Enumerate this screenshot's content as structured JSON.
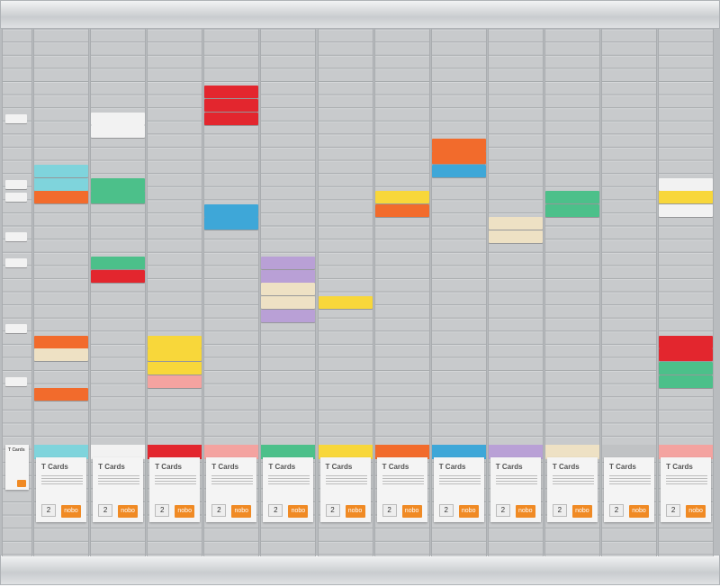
{
  "board": {
    "pack_title": "T Cards",
    "pack_number": "2",
    "brand": "nobo",
    "first_column_markers": [
      6,
      11,
      12,
      15,
      17,
      22,
      26
    ],
    "columns": [
      {
        "pack_color": "#7fd4dc",
        "cards": [
          [
            10,
            "#7fd4dc"
          ],
          [
            11,
            "#7fd4dc"
          ],
          [
            12,
            "#f26b2c"
          ],
          [
            23,
            "#f26b2c"
          ],
          [
            24,
            "#eee1c4"
          ],
          [
            27,
            "#f26b2c"
          ]
        ]
      },
      {
        "pack_color": "#f2f2f2",
        "cards": [
          [
            6,
            "#f2f2f2"
          ],
          [
            7,
            "#f2f2f2"
          ],
          [
            11,
            "#4cc08a"
          ],
          [
            12,
            "#4cc08a"
          ],
          [
            17,
            "#4cc08a"
          ],
          [
            18,
            "#e3262e"
          ]
        ]
      },
      {
        "pack_color": "#e3262e",
        "cards": [
          [
            23,
            "#f8d73a"
          ],
          [
            24,
            "#f8d73a"
          ],
          [
            25,
            "#f8d73a"
          ],
          [
            26,
            "#f4a3a0"
          ]
        ]
      },
      {
        "pack_color": "#f4a3a0",
        "cards": [
          [
            4,
            "#e3262e"
          ],
          [
            5,
            "#e3262e"
          ],
          [
            6,
            "#e3262e"
          ],
          [
            13,
            "#3ea7d8"
          ],
          [
            14,
            "#3ea7d8"
          ]
        ]
      },
      {
        "pack_color": "#4cc08a",
        "cards": [
          [
            17,
            "#b9a0d6"
          ],
          [
            18,
            "#b9a0d6"
          ],
          [
            19,
            "#eee1c4"
          ],
          [
            20,
            "#eee1c4"
          ],
          [
            21,
            "#b9a0d6"
          ]
        ]
      },
      {
        "pack_color": "#f8d73a",
        "cards": [
          [
            20,
            "#f8d73a"
          ]
        ]
      },
      {
        "pack_color": "#f26b2c",
        "cards": [
          [
            12,
            "#f8d73a"
          ],
          [
            13,
            "#f26b2c"
          ]
        ]
      },
      {
        "pack_color": "#3ea7d8",
        "cards": [
          [
            8,
            "#f26b2c"
          ],
          [
            9,
            "#f26b2c"
          ],
          [
            10,
            "#3ea7d8"
          ]
        ]
      },
      {
        "pack_color": "#b9a0d6",
        "cards": [
          [
            14,
            "#eee1c4"
          ],
          [
            15,
            "#eee1c4"
          ]
        ]
      },
      {
        "pack_color": "#eee1c4",
        "cards": [
          [
            12,
            "#4cc08a"
          ],
          [
            13,
            "#4cc08a"
          ]
        ]
      },
      {
        "pack_color": "#c0c2c4",
        "cards": []
      },
      {
        "pack_color": "#f4a3a0",
        "cards": [
          [
            11,
            "#f2f2f2"
          ],
          [
            12,
            "#f8d73a"
          ],
          [
            13,
            "#f2f2f2"
          ],
          [
            23,
            "#e3262e"
          ],
          [
            24,
            "#e3262e"
          ],
          [
            25,
            "#4cc08a"
          ],
          [
            26,
            "#4cc08a"
          ]
        ]
      }
    ]
  }
}
